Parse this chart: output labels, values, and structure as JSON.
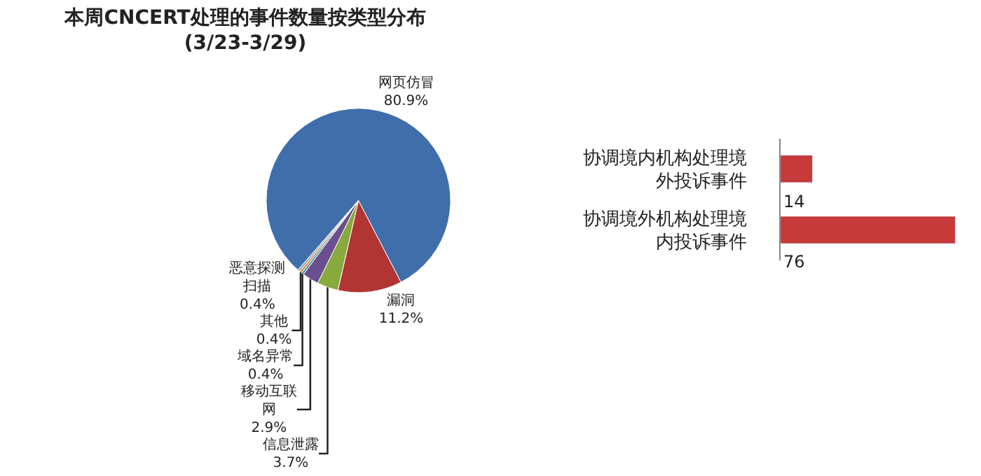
{
  "chart_data": [
    {
      "type": "pie",
      "title": "本周CNCERT处理的事件数量按类型分布",
      "subtitle": "(3/23-3/29)",
      "categories": [
        "网页仿冒",
        "漏洞",
        "信息泄露",
        "移动互联网",
        "域名异常",
        "其他",
        "恶意探测扫描"
      ],
      "values": [
        80.9,
        11.2,
        3.7,
        2.9,
        0.4,
        0.4,
        0.4
      ],
      "value_labels": [
        "80.9%",
        "11.2%",
        "3.7%",
        "2.9%",
        "0.4%",
        "0.4%",
        "0.4%"
      ],
      "colors": [
        "#3f6eab",
        "#b03533",
        "#88a93e",
        "#6b4e8e",
        "#3b9ab3",
        "#e08a2e",
        "#8fa9d2"
      ],
      "legend": false
    },
    {
      "type": "bar",
      "orientation": "horizontal",
      "categories": [
        "协调境内机构处理境外投诉事件",
        "协调境外机构处理境内投诉事件"
      ],
      "legend": false,
      "values": [
        14,
        76
      ],
      "color": "#c63a3c",
      "data_labels": true
    }
  ]
}
